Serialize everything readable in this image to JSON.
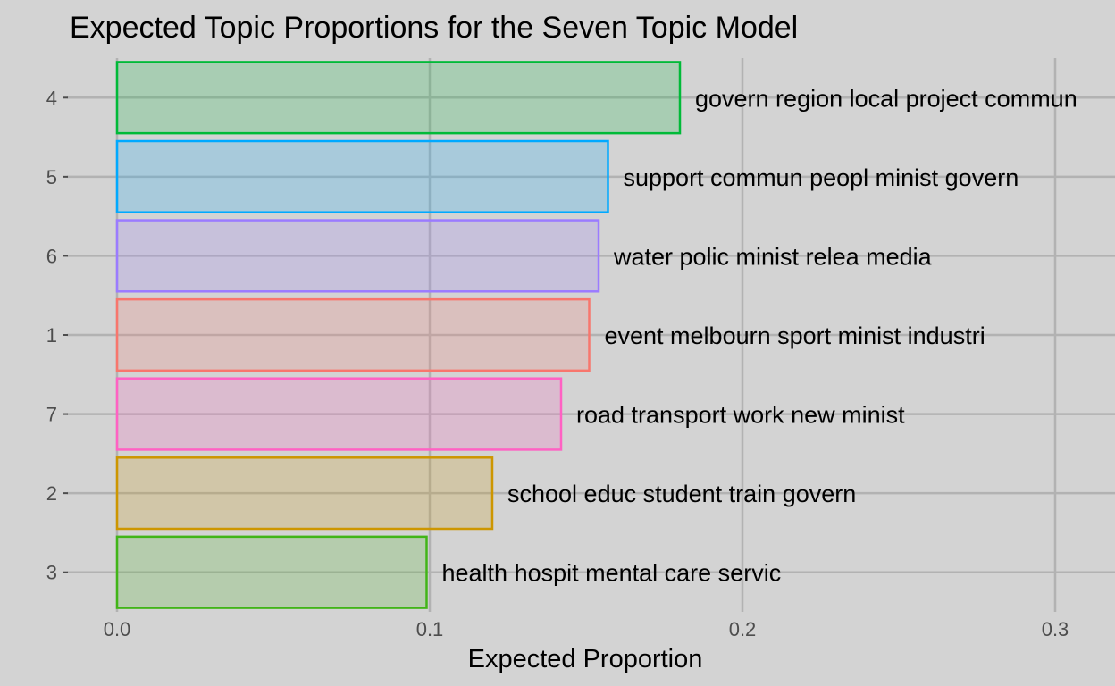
{
  "chart_data": {
    "type": "bar",
    "orientation": "horizontal",
    "title": "Expected Topic Proportions for the Seven Topic Model",
    "xlabel": "Expected Proportion",
    "ylabel": "",
    "xlim": [
      0,
      0.315
    ],
    "x_ticks": [
      0,
      0.1,
      0.2,
      0.3
    ],
    "x_tick_labels": [
      "0.0",
      "0.1",
      "0.2",
      "0.3"
    ],
    "grid": true,
    "legend": "none",
    "categories": [
      "4",
      "5",
      "6",
      "1",
      "7",
      "2",
      "3"
    ],
    "values": [
      0.18,
      0.157,
      0.154,
      0.151,
      0.142,
      0.12,
      0.099
    ],
    "labels": [
      "govern region local project commun",
      "support commun peopl minist govern",
      "water polic minist relea media",
      "event melbourn sport minist industri",
      "road transport work new minist",
      "school educ student train govern",
      "health hospit mental care servic"
    ],
    "colors": [
      "#00BA38",
      "#00A9FF",
      "#9B7BFF",
      "#F8766D",
      "#FF61C3",
      "#CD9600",
      "#41B517"
    ]
  }
}
